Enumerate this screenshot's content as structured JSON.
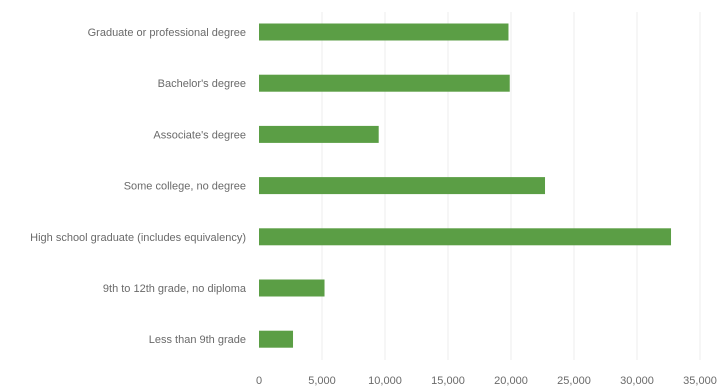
{
  "chart_data": {
    "type": "bar",
    "orientation": "horizontal",
    "title": "",
    "xlabel": "",
    "ylabel": "",
    "categories": [
      "Graduate or professional degree",
      "Bachelor's degree",
      "Associate's degree",
      "Some college, no degree",
      "High school graduate (includes equivalency)",
      "9th to 12th grade, no diploma",
      "Less than 9th grade"
    ],
    "values": [
      19800,
      19900,
      9500,
      22700,
      32700,
      5200,
      2700
    ],
    "xlim": [
      0,
      35000
    ],
    "xticks": [
      0,
      5000,
      10000,
      15000,
      20000,
      25000,
      30000,
      35000
    ],
    "xtick_labels": [
      "0",
      "5,000",
      "10,000",
      "15,000",
      "20,000",
      "25,000",
      "30,000",
      "35,000"
    ],
    "grid": "vertical",
    "legend": "none",
    "bar_color": "#5b9e45"
  }
}
